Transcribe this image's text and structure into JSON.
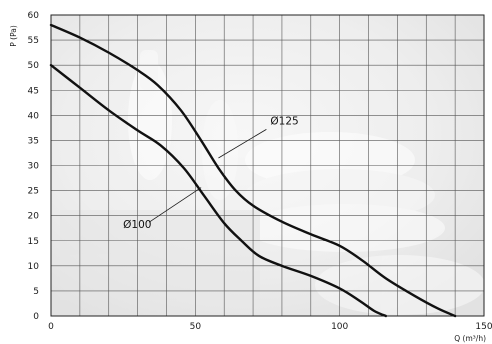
{
  "chart_data": {
    "type": "line",
    "title": "",
    "xlabel": "Q (m³/h)",
    "ylabel": "P (Pa)",
    "xlim": [
      0,
      150
    ],
    "ylim": [
      0,
      60
    ],
    "x_ticks": [
      0,
      50,
      100,
      150
    ],
    "y_ticks": [
      0,
      5,
      10,
      15,
      20,
      25,
      30,
      35,
      40,
      45,
      50,
      55,
      60
    ],
    "grid": true,
    "grid_x_step": 10,
    "grid_y_step": 5,
    "series": [
      {
        "name": "Ø125",
        "color": "#111111",
        "points": [
          [
            0,
            58
          ],
          [
            10,
            55.5
          ],
          [
            20,
            52.5
          ],
          [
            30,
            49
          ],
          [
            37,
            46
          ],
          [
            45,
            41
          ],
          [
            52,
            35
          ],
          [
            58,
            29.5
          ],
          [
            64,
            25
          ],
          [
            70,
            22
          ],
          [
            80,
            18.8
          ],
          [
            90,
            16.3
          ],
          [
            100,
            14
          ],
          [
            108,
            11
          ],
          [
            116,
            7.5
          ],
          [
            126,
            4
          ],
          [
            134,
            1.5
          ],
          [
            140,
            0
          ]
        ]
      },
      {
        "name": "Ø100",
        "color": "#111111",
        "points": [
          [
            0,
            50
          ],
          [
            10,
            45.5
          ],
          [
            20,
            41
          ],
          [
            30,
            37
          ],
          [
            38,
            34
          ],
          [
            46,
            29.5
          ],
          [
            53,
            24
          ],
          [
            60,
            18.5
          ],
          [
            66,
            15
          ],
          [
            72,
            12
          ],
          [
            80,
            10
          ],
          [
            90,
            8
          ],
          [
            100,
            5.5
          ],
          [
            107,
            3
          ],
          [
            112,
            1
          ],
          [
            116,
            0
          ]
        ]
      }
    ],
    "labels": [
      {
        "text": "Ø125",
        "series": 0,
        "anchor": [
          76,
          38.2
        ],
        "leader_to": [
          58,
          31.5
        ]
      },
      {
        "text": "Ø100",
        "series": 1,
        "anchor": [
          25,
          17.5
        ],
        "leader_to": [
          52,
          25.6
        ]
      }
    ],
    "background_color": "#f4f4f4",
    "grid_color": "#555555"
  }
}
